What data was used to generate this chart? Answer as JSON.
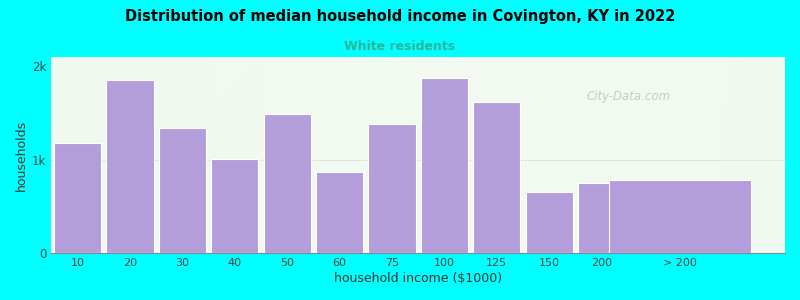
{
  "title": "Distribution of median household income in Covington, KY in 2022",
  "subtitle": "White residents",
  "xlabel": "household income ($1000)",
  "ylabel": "households",
  "background_color": "#00FFFF",
  "bar_color": "#b39ddb",
  "bar_edge_color": "#ffffff",
  "title_color": "#000000",
  "subtitle_color": "#2db3a0",
  "categories": [
    "10",
    "20",
    "30",
    "40",
    "50",
    "60",
    "75",
    "100",
    "125",
    "150",
    "200",
    "> 200"
  ],
  "values": [
    1180,
    1850,
    1340,
    1010,
    1490,
    870,
    1380,
    1880,
    1620,
    650,
    750,
    780
  ],
  "bar_widths": [
    1,
    1,
    1,
    1,
    1,
    1,
    1,
    1,
    1,
    1,
    1,
    3
  ],
  "bar_positions": [
    0,
    1,
    2,
    3,
    4,
    5,
    6,
    7,
    8,
    9,
    10,
    11.5
  ],
  "ytick_labels": [
    "0",
    "1k",
    "2k"
  ],
  "ytick_values": [
    0,
    1000,
    2000
  ],
  "ylim": [
    0,
    2100
  ],
  "xlim": [
    -0.5,
    13.5
  ],
  "watermark": "City-Data.com"
}
